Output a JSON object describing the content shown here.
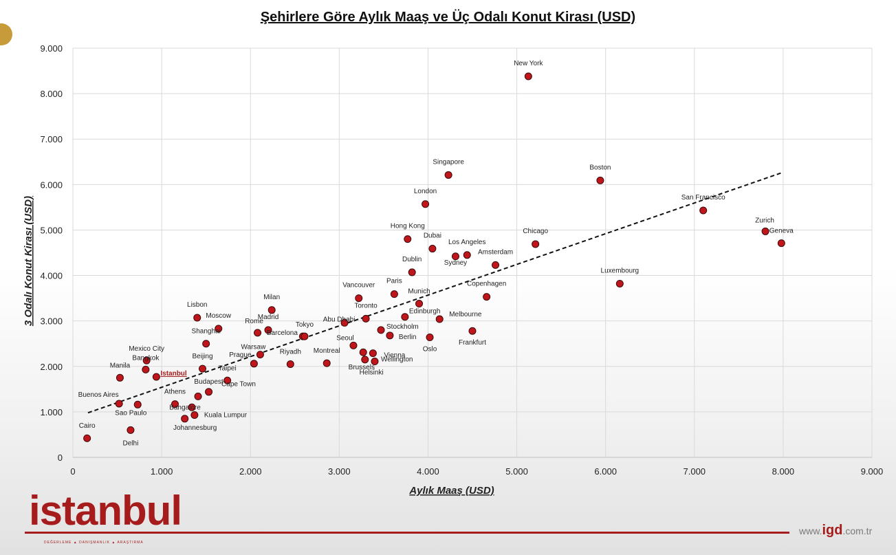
{
  "title": "Şehirlere Göre Aylık Maaş ve Üç Odalı Konut Kirası (USD)",
  "brand": {
    "logo_text": "istanbul",
    "tagline": "DEĞERLEME   ▲   DANIŞMANLIK   ▲   ARAŞTIRMA",
    "website_prefix": "www.",
    "website_highlight": "igd",
    "website_suffix": ".com.tr"
  },
  "colors": {
    "point": "#c0161b",
    "highlight": "#a61b1b",
    "grid": "#d9d9d9",
    "trend": "#111111"
  },
  "chart_data": {
    "type": "scatter",
    "title": "Şehirlere Göre Aylık Maaş ve Üç Odalı Konut Kirası (USD)",
    "xlabel": "Aylık Maaş (USD)",
    "ylabel": "3 Odalı Konut Kirası (USD)",
    "xlim": [
      0,
      9000
    ],
    "ylim": [
      0,
      9000
    ],
    "xticks": [
      0,
      1000,
      2000,
      3000,
      4000,
      5000,
      6000,
      7000,
      8000,
      9000
    ],
    "yticks": [
      0,
      1000,
      2000,
      3000,
      4000,
      5000,
      6000,
      7000,
      8000,
      9000
    ],
    "xtick_labels": [
      "0",
      "1.000",
      "2.000",
      "3.000",
      "4.000",
      "5.000",
      "6.000",
      "7.000",
      "8.000",
      "9.000"
    ],
    "ytick_labels": [
      "0",
      "1.000",
      "2.000",
      "3.000",
      "4.000",
      "5.000",
      "6.000",
      "7.000",
      "8.000",
      "9.000"
    ],
    "grid": true,
    "trendline": {
      "style": "dashed",
      "from": [
        170,
        980
      ],
      "to": [
        8000,
        6270
      ]
    },
    "points": [
      {
        "label": "New York",
        "x": 5130,
        "y": 8380
      },
      {
        "label": "Singapore",
        "x": 4230,
        "y": 6210
      },
      {
        "label": "Boston",
        "x": 5940,
        "y": 6090
      },
      {
        "label": "London",
        "x": 3970,
        "y": 5570
      },
      {
        "label": "San Francisco",
        "x": 7100,
        "y": 5430
      },
      {
        "label": "Zurich",
        "x": 7800,
        "y": 4970
      },
      {
        "label": "Geneva",
        "x": 7980,
        "y": 4710
      },
      {
        "label": "Hong Kong",
        "x": 3770,
        "y": 4800
      },
      {
        "label": "Chicago",
        "x": 5210,
        "y": 4690
      },
      {
        "label": "Dubai",
        "x": 4050,
        "y": 4590
      },
      {
        "label": "Los Angeles",
        "x": 4440,
        "y": 4450
      },
      {
        "label": "Amsterdam",
        "x": 4760,
        "y": 4230
      },
      {
        "label": "Dublin",
        "x": 3820,
        "y": 4070
      },
      {
        "label": "Sydney",
        "x": 4310,
        "y": 4420
      },
      {
        "label": "Luxembourg",
        "x": 6160,
        "y": 3820
      },
      {
        "label": "Vancouver",
        "x": 3220,
        "y": 3500
      },
      {
        "label": "Paris",
        "x": 3620,
        "y": 3590
      },
      {
        "label": "Munich",
        "x": 3900,
        "y": 3380
      },
      {
        "label": "Copenhagen",
        "x": 4660,
        "y": 3530
      },
      {
        "label": "Milan",
        "x": 2240,
        "y": 3240
      },
      {
        "label": "Lisbon",
        "x": 1400,
        "y": 3070
      },
      {
        "label": "Moscow",
        "x": 1640,
        "y": 2830
      },
      {
        "label": "Madrid",
        "x": 2200,
        "y": 2800
      },
      {
        "label": "Toronto",
        "x": 3300,
        "y": 3050
      },
      {
        "label": "Edinburgh",
        "x": 3740,
        "y": 3090
      },
      {
        "label": "Melbourne",
        "x": 4130,
        "y": 3040
      },
      {
        "label": "Abu Dhabi",
        "x": 3060,
        "y": 2960
      },
      {
        "label": "Rome",
        "x": 2080,
        "y": 2740
      },
      {
        "label": "Barcelona",
        "x": 2590,
        "y": 2660
      },
      {
        "label": "Tokyo",
        "x": 2610,
        "y": 2660
      },
      {
        "label": "Shanghai",
        "x": 1500,
        "y": 2500
      },
      {
        "label": "Stockholm",
        "x": 3470,
        "y": 2800
      },
      {
        "label": "Berlin",
        "x": 3570,
        "y": 2680
      },
      {
        "label": "Oslo",
        "x": 4020,
        "y": 2640
      },
      {
        "label": "Frankfurt",
        "x": 4500,
        "y": 2780
      },
      {
        "label": "Seoul",
        "x": 3160,
        "y": 2460
      },
      {
        "label": "Warsaw",
        "x": 2110,
        "y": 2260
      },
      {
        "label": "Prague",
        "x": 2040,
        "y": 2060
      },
      {
        "label": "Riyadh",
        "x": 2450,
        "y": 2050
      },
      {
        "label": "Montreal",
        "x": 2860,
        "y": 2070
      },
      {
        "label": "Vienna",
        "x": 3380,
        "y": 2290
      },
      {
        "label": "Wellington",
        "x": 3400,
        "y": 2110
      },
      {
        "label": "Brussels",
        "x": 3290,
        "y": 2150
      },
      {
        "label": "Helsinki",
        "x": 3270,
        "y": 2310
      },
      {
        "label": "Mexico City",
        "x": 830,
        "y": 2130
      },
      {
        "label": "Bangkok",
        "x": 820,
        "y": 1930
      },
      {
        "label": "Istanbul",
        "x": 940,
        "y": 1770
      },
      {
        "label": "Beijing",
        "x": 1460,
        "y": 1950
      },
      {
        "label": "Manila",
        "x": 530,
        "y": 1750
      },
      {
        "label": "Taipei",
        "x": 1740,
        "y": 1690
      },
      {
        "label": "Budapest",
        "x": 1530,
        "y": 1440
      },
      {
        "label": "Cape Town",
        "x": 1410,
        "y": 1340
      },
      {
        "label": "Athens",
        "x": 1150,
        "y": 1170
      },
      {
        "label": "Buenos Aires",
        "x": 520,
        "y": 1180
      },
      {
        "label": "Sao Paulo",
        "x": 730,
        "y": 1160
      },
      {
        "label": "Bangalore",
        "x": 1340,
        "y": 1100
      },
      {
        "label": "Kuala Lumpur",
        "x": 1370,
        "y": 930
      },
      {
        "label": "Johannesburg",
        "x": 1260,
        "y": 850
      },
      {
        "label": "Cairo",
        "x": 160,
        "y": 420
      },
      {
        "label": "Delhi",
        "x": 650,
        "y": 600
      }
    ]
  }
}
